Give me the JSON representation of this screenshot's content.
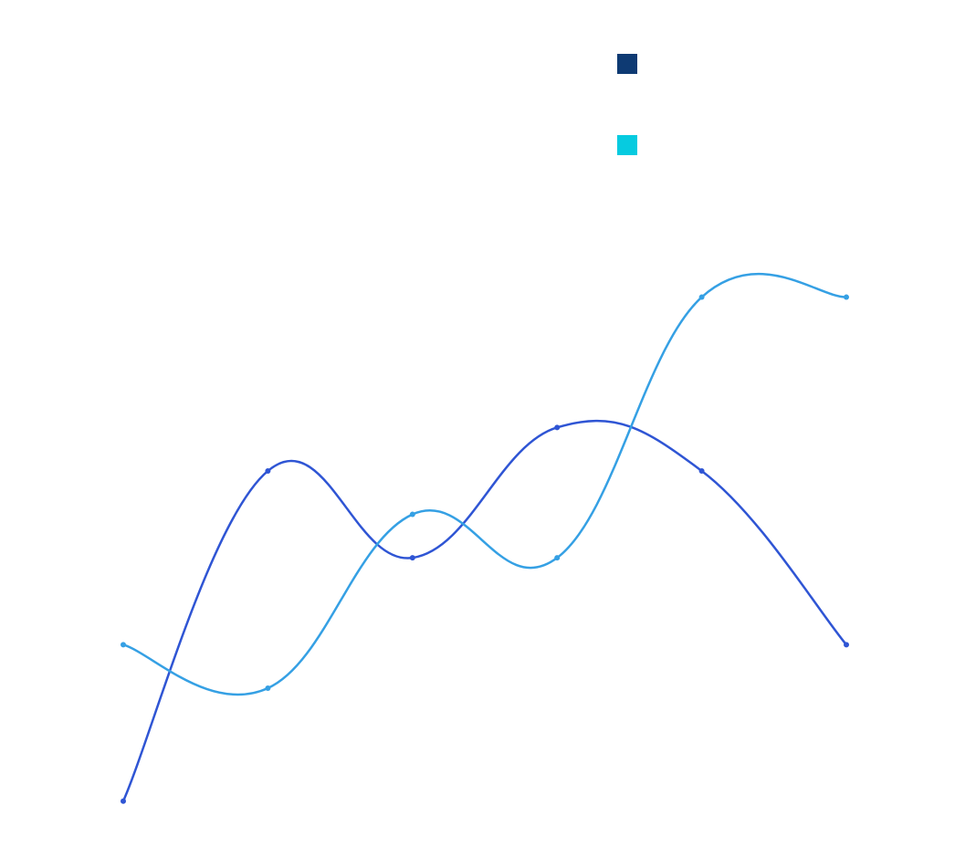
{
  "chart_data": {
    "type": "line",
    "title": "",
    "xlabel": "",
    "ylabel": "",
    "x": [
      0,
      1,
      2,
      3,
      4,
      5
    ],
    "ylim": [
      0,
      10
    ],
    "grid": false,
    "legend_position": "top-right",
    "curve": "smooth",
    "series": [
      {
        "color": "#2f55d4",
        "legend_color": "#0e3a73",
        "values": [
          1.4,
          5.2,
          4.2,
          5.7,
          5.2,
          3.2
        ]
      },
      {
        "color": "#35a0e4",
        "legend_color": "#06cbe0",
        "values": [
          3.2,
          2.7,
          4.7,
          4.2,
          7.2,
          7.2
        ]
      }
    ]
  }
}
